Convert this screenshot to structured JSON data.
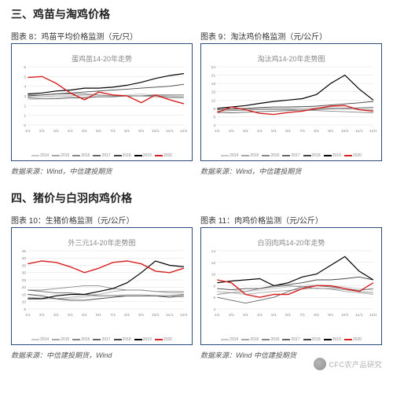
{
  "sections": [
    {
      "heading": "三、鸡苗与淘鸡价格",
      "charts": [
        {
          "label": "图表 8：鸡苗平均价格监测（元/只）",
          "inner_title": "蛋鸡苗14-20年走势",
          "ylim": [
            0,
            6
          ],
          "ytick_step": 1,
          "series": [
            {
              "year": "2014",
              "color": "#c9c9c9",
              "data": [
                2.6,
                2.7,
                2.8,
                2.9,
                2.9,
                3.0,
                3.0,
                3.1,
                3.2,
                3.1,
                3.0,
                2.9
              ]
            },
            {
              "year": "2015",
              "color": "#a8a8a8",
              "data": [
                2.9,
                2.9,
                3.0,
                3.0,
                3.1,
                3.1,
                3.0,
                3.0,
                3.0,
                2.9,
                2.8,
                2.8
              ]
            },
            {
              "year": "2016",
              "color": "#888888",
              "data": [
                3.1,
                3.1,
                3.2,
                3.2,
                3.2,
                3.1,
                3.0,
                3.0,
                3.0,
                3.0,
                2.9,
                2.9
              ]
            },
            {
              "year": "2017",
              "color": "#666666",
              "data": [
                2.8,
                2.7,
                2.7,
                2.8,
                2.8,
                2.9,
                2.9,
                3.0,
                3.0,
                3.1,
                3.1,
                3.1
              ]
            },
            {
              "year": "2018",
              "color": "#444444",
              "data": [
                3.0,
                3.1,
                3.2,
                3.3,
                3.4,
                3.5,
                3.6,
                3.7,
                3.8,
                3.9,
                4.0,
                4.2
              ]
            },
            {
              "year": "2019",
              "color": "#000000",
              "data": [
                3.2,
                3.3,
                3.5,
                3.6,
                3.8,
                3.8,
                3.9,
                4.1,
                4.4,
                4.8,
                5.1,
                5.3
              ]
            },
            {
              "year": "2020",
              "color": "#d62020",
              "data": [
                4.9,
                5.0,
                4.3,
                3.3,
                2.6,
                3.4,
                3.1,
                3.0,
                2.3,
                3.1,
                2.6,
                2.2
              ]
            }
          ],
          "source": "数据来源：Wind，中信建投期货"
        },
        {
          "label": "图表 9：淘汰鸡价格监测（元/公斤）",
          "inner_title": "淘汰鸡14-20年走势图",
          "ylim": [
            3,
            24
          ],
          "ytick_step": 3,
          "series": [
            {
              "year": "2014",
              "color": "#c9c9c9",
              "data": [
                8.0,
                8.2,
                8.4,
                8.6,
                8.8,
                8.8,
                9.0,
                9.2,
                9.3,
                9.2,
                9.0,
                8.8
              ]
            },
            {
              "year": "2015",
              "color": "#a8a8a8",
              "data": [
                8.5,
                8.6,
                8.8,
                8.9,
                9.0,
                9.0,
                9.0,
                9.0,
                9.0,
                8.8,
                8.6,
                8.4
              ]
            },
            {
              "year": "2016",
              "color": "#888888",
              "data": [
                8.0,
                8.2,
                8.4,
                8.6,
                8.6,
                8.6,
                8.4,
                8.2,
                8.0,
                7.8,
                7.6,
                7.4
              ]
            },
            {
              "year": "2017",
              "color": "#666666",
              "data": [
                7.5,
                7.4,
                7.6,
                7.8,
                8.0,
                8.2,
                8.4,
                8.6,
                8.8,
                9.0,
                9.2,
                9.4
              ]
            },
            {
              "year": "2018",
              "color": "#444444",
              "data": [
                8.5,
                8.8,
                9.0,
                9.3,
                9.5,
                9.5,
                9.6,
                9.8,
                10.2,
                10.6,
                11.0,
                11.5
              ]
            },
            {
              "year": "2019",
              "color": "#000000",
              "data": [
                9.0,
                9.5,
                10.0,
                10.8,
                11.5,
                12.0,
                12.5,
                14.0,
                18.0,
                21.0,
                16.0,
                12.0
              ]
            },
            {
              "year": "2020",
              "color": "#d62020",
              "data": [
                7.5,
                9.5,
                8.5,
                7.2,
                6.8,
                7.5,
                8.0,
                9.0,
                9.8,
                10.0,
                8.5,
                8.0
              ]
            }
          ],
          "source": "数据来源：Wind，中信建投期货"
        }
      ]
    },
    {
      "heading": "四、猪价与白羽肉鸡价格",
      "charts": [
        {
          "label": "图表 10：生猪价格监测（元/公斤）",
          "inner_title": "外三元14-20年走势图",
          "ylim": [
            5,
            45
          ],
          "ytick_step": 5,
          "series": [
            {
              "year": "2014",
              "color": "#c9c9c9",
              "data": [
                13,
                13,
                12,
                12,
                13,
                14,
                14,
                15,
                15,
                14,
                14,
                13
              ]
            },
            {
              "year": "2015",
              "color": "#a8a8a8",
              "data": [
                13,
                12,
                12,
                13,
                14,
                15,
                17,
                18,
                18,
                17,
                16,
                16
              ]
            },
            {
              "year": "2016",
              "color": "#888888",
              "data": [
                18,
                18,
                19,
                20,
                21,
                21,
                19,
                18,
                18,
                17,
                17,
                17
              ]
            },
            {
              "year": "2017",
              "color": "#666666",
              "data": [
                18,
                17,
                16,
                16,
                15,
                14,
                14,
                14,
                14,
                14,
                14,
                15
              ]
            },
            {
              "year": "2018",
              "color": "#444444",
              "data": [
                15,
                14,
                12,
                11,
                11,
                12,
                13,
                14,
                14,
                14,
                13,
                14
              ]
            },
            {
              "year": "2019",
              "color": "#000000",
              "data": [
                12,
                12,
                14,
                15,
                15,
                17,
                19,
                23,
                30,
                38,
                35,
                34
              ]
            },
            {
              "year": "2020",
              "color": "#d62020",
              "data": [
                36,
                38,
                37,
                34,
                30,
                33,
                37,
                38,
                36,
                31,
                30,
                33
              ]
            }
          ],
          "source": "数据来源：中信建投期货，Wind"
        },
        {
          "label": "图表 11：肉鸡价格监测（元/公斤）",
          "inner_title": "白羽肉鸡14-20年走势",
          "ylim": [
            4,
            14
          ],
          "ytick_step": 2,
          "series": [
            {
              "year": "2014",
              "color": "#c9c9c9",
              "data": [
                7.5,
                7.3,
                7.0,
                7.2,
                7.5,
                7.8,
                8.0,
                8.2,
                8.0,
                7.8,
                7.5,
                7.2
              ]
            },
            {
              "year": "2015",
              "color": "#a8a8a8",
              "data": [
                7.0,
                6.8,
                6.5,
                6.8,
                7.0,
                7.2,
                7.4,
                7.6,
                7.4,
                7.0,
                6.8,
                6.5
              ]
            },
            {
              "year": "2016",
              "color": "#888888",
              "data": [
                6.5,
                6.8,
                7.0,
                7.5,
                7.8,
                8.0,
                7.8,
                7.5,
                7.5,
                7.3,
                7.0,
                6.8
              ]
            },
            {
              "year": "2017",
              "color": "#666666",
              "data": [
                6.0,
                5.5,
                5.0,
                5.5,
                6.0,
                7.0,
                7.8,
                8.0,
                7.8,
                7.5,
                7.2,
                7.5
              ]
            },
            {
              "year": "2018",
              "color": "#444444",
              "data": [
                7.5,
                7.3,
                7.5,
                7.5,
                8.0,
                8.2,
                8.5,
                9.0,
                9.0,
                9.2,
                9.5,
                9.0
              ]
            },
            {
              "year": "2019",
              "color": "#000000",
              "data": [
                8.5,
                8.8,
                9.0,
                9.2,
                8.0,
                8.5,
                9.5,
                10.0,
                11.5,
                13.0,
                10.5,
                9.0
              ]
            },
            {
              "year": "2020",
              "color": "#d62020",
              "data": [
                9.0,
                8.5,
                6.5,
                6.0,
                6.5,
                6.5,
                7.5,
                8.0,
                8.0,
                7.5,
                7.0,
                8.5
              ]
            }
          ],
          "source": "数据来源：Wind 中信建投期货"
        }
      ]
    }
  ],
  "xlabels": [
    "1/1",
    "2/1",
    "3/1",
    "4/1",
    "5/1",
    "6/1",
    "7/1",
    "8/1",
    "9/1",
    "10/1",
    "11/1",
    "12/1"
  ],
  "legend_years": [
    "2014",
    "2015",
    "2016",
    "2017",
    "2018",
    "2019",
    "2020"
  ],
  "watermark": "CFC农产品研究"
}
